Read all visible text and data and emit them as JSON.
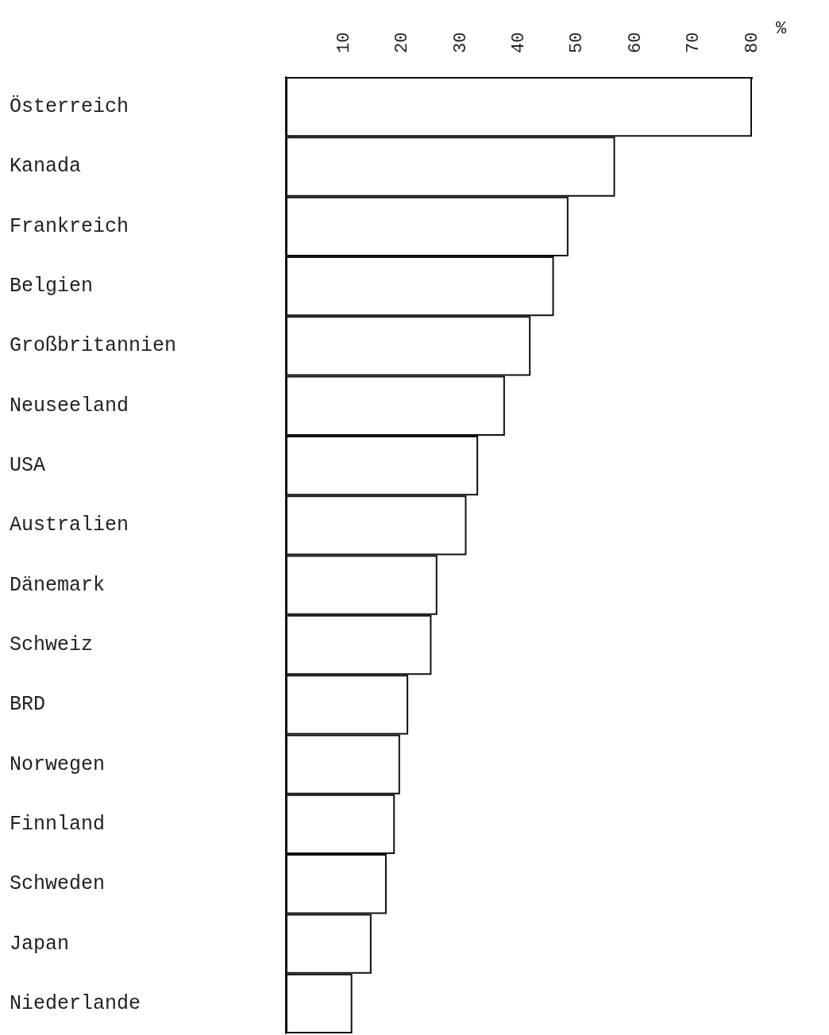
{
  "chart_data": {
    "type": "bar",
    "orientation": "horizontal",
    "xlabel": "%",
    "categories": [
      "Österreich",
      "Kanada",
      "Frankreich",
      "Belgien",
      "Großbritannien",
      "Neuseeland",
      "USA",
      "Australien",
      "Dänemark",
      "Schweiz",
      "BRD",
      "Norwegen",
      "Finnland",
      "Schweden",
      "Japan",
      "Niederlande"
    ],
    "values": [
      80,
      56.5,
      48.5,
      46,
      42,
      37.6,
      33,
      31,
      26,
      25,
      21,
      19.6,
      18.7,
      17.3,
      14.7,
      11.4
    ],
    "color": "#ffffff",
    "xlim": [
      0,
      80
    ],
    "xticks": [
      10,
      20,
      30,
      40,
      50,
      60,
      70,
      80
    ],
    "grid": false
  }
}
